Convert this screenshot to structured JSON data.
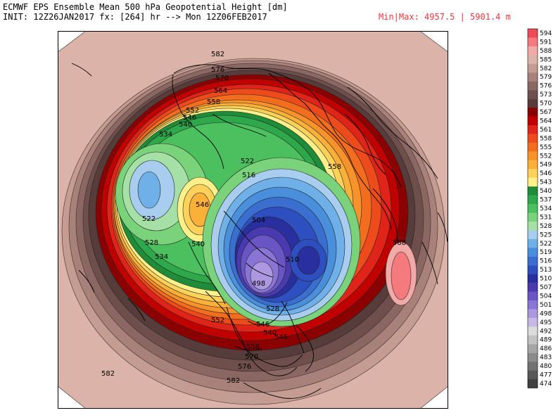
{
  "header": {
    "title_line1": "ECMWF EPS Ensemble Mean 500 hPa Geopotential Height [dm]",
    "title_line2": "INIT: 12Z26JAN2017 fx: [264] hr --> Mon 12Z06FEB2017",
    "minmax": "Min|Max: 4957.5 | 5901.4 m"
  },
  "colorbar": {
    "levels": [
      "594",
      "591",
      "588",
      "585",
      "582",
      "579",
      "576",
      "573",
      "570",
      "567",
      "564",
      "561",
      "558",
      "555",
      "552",
      "549",
      "546",
      "543",
      "540",
      "537",
      "534",
      "531",
      "528",
      "525",
      "522",
      "519",
      "516",
      "513",
      "510",
      "507",
      "504",
      "501",
      "498",
      "495",
      "492",
      "489",
      "486",
      "483",
      "480",
      "477",
      "474"
    ],
    "colors": [
      "#ee4b56",
      "#f47a7d",
      "#f0aaa8",
      "#dcb3a8",
      "#c49c92",
      "#a8827a",
      "#8a6762",
      "#6e4f4c",
      "#563c3a",
      "#8b0000",
      "#c00000",
      "#e0241a",
      "#ee4b1c",
      "#f36d1f",
      "#f7932a",
      "#fbb03a",
      "#fdd15a",
      "#fff08a",
      "#1f8c3a",
      "#2ea84a",
      "#4cc05e",
      "#7ad37a",
      "#a6e0a6",
      "#a8cdee",
      "#6fb0e8",
      "#4a8fdc",
      "#3a6fd0",
      "#2d4fbf",
      "#2a2fa0",
      "#4a3ab0",
      "#6a55c5",
      "#8a75d5",
      "#ab98e0",
      "#c8b8ea",
      "#dcdcdc",
      "#c2c2c2",
      "#a6a6a6",
      "#8c8c8c",
      "#727272",
      "#585858",
      "#404040"
    ]
  },
  "contour_labels": [
    {
      "text": "582"
    },
    {
      "text": "576"
    },
    {
      "text": "570"
    },
    {
      "text": "564"
    },
    {
      "text": "558"
    },
    {
      "text": "552"
    },
    {
      "text": "546"
    },
    {
      "text": "540"
    },
    {
      "text": "534"
    },
    {
      "text": "522"
    },
    {
      "text": "516"
    },
    {
      "text": "528"
    },
    {
      "text": "534"
    },
    {
      "text": "540"
    },
    {
      "text": "546"
    },
    {
      "text": "522"
    },
    {
      "text": "504"
    },
    {
      "text": "510"
    },
    {
      "text": "498"
    },
    {
      "text": "558"
    },
    {
      "text": "588"
    },
    {
      "text": "552"
    },
    {
      "text": "546"
    },
    {
      "text": "540"
    },
    {
      "text": "528"
    },
    {
      "text": "558"
    },
    {
      "text": "570"
    },
    {
      "text": "576"
    },
    {
      "text": "582"
    },
    {
      "text": "582"
    },
    {
      "text": "546"
    }
  ]
}
